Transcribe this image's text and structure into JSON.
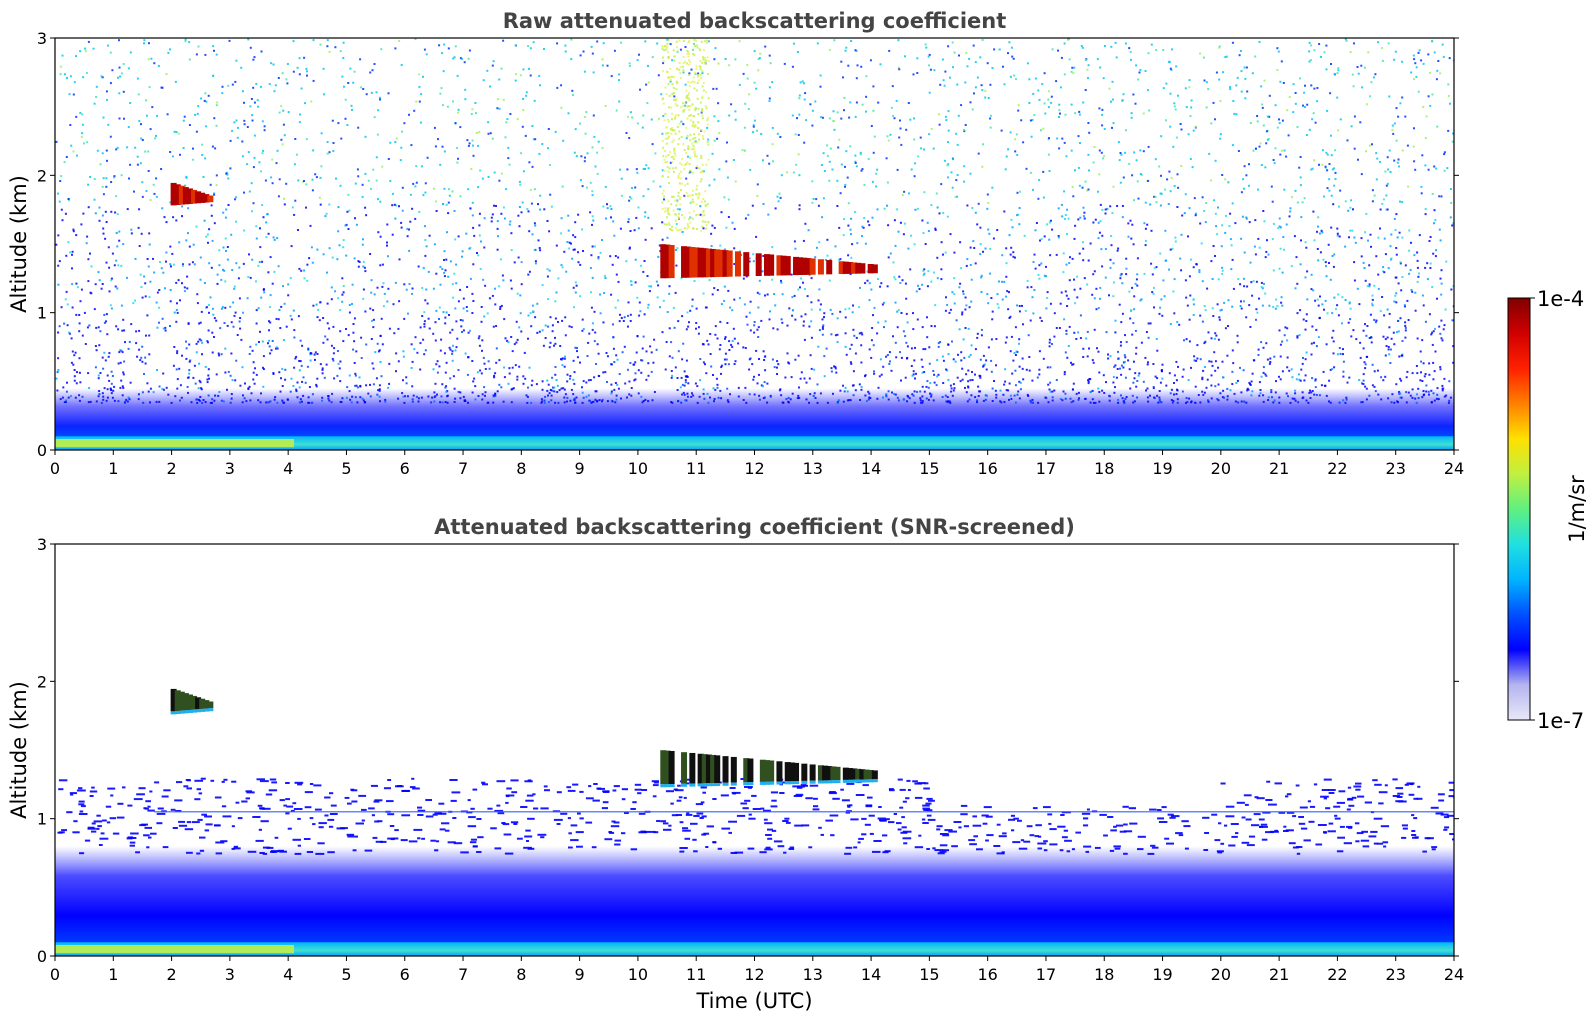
{
  "chart_data": [
    {
      "type": "heatmap",
      "title": "Raw attenuated backscattering coefficient",
      "xlabel": "",
      "ylabel": "Altitude (km)",
      "xlim": [
        0,
        24
      ],
      "ylim": [
        0,
        3
      ],
      "xticks": [
        "0",
        "1",
        "2",
        "3",
        "4",
        "5",
        "6",
        "7",
        "8",
        "9",
        "10",
        "11",
        "12",
        "13",
        "14",
        "15",
        "16",
        "17",
        "18",
        "19",
        "20",
        "21",
        "22",
        "23",
        "24"
      ],
      "yticks": [
        "0",
        "1",
        "2",
        "3"
      ],
      "features": [
        {
          "label": "surface aerosol layer",
          "x": [
            0,
            24
          ],
          "y": [
            0.0,
            0.1
          ],
          "level": "high"
        },
        {
          "label": "boundary layer",
          "x": [
            0,
            24
          ],
          "y": [
            0.1,
            0.45
          ],
          "level": "medium"
        },
        {
          "label": "cloud",
          "x": [
            2.0,
            2.7
          ],
          "y": [
            1.78,
            1.95
          ],
          "level": "saturated"
        },
        {
          "label": "cloud",
          "x": [
            10.4,
            14.1
          ],
          "y": [
            1.25,
            1.5
          ],
          "level": "saturated"
        }
      ]
    },
    {
      "type": "heatmap",
      "title": "Attenuated backscattering coefficient (SNR-screened)",
      "xlabel": "Time (UTC)",
      "ylabel": "Altitude (km)",
      "xlim": [
        0,
        24
      ],
      "ylim": [
        0,
        3
      ],
      "xticks": [
        "0",
        "1",
        "2",
        "3",
        "4",
        "5",
        "6",
        "7",
        "8",
        "9",
        "10",
        "11",
        "12",
        "13",
        "14",
        "15",
        "16",
        "17",
        "18",
        "19",
        "20",
        "21",
        "22",
        "23",
        "24"
      ],
      "yticks": [
        "0",
        "1",
        "2",
        "3"
      ],
      "features": [
        {
          "label": "surface aerosol layer",
          "x": [
            0,
            24
          ],
          "y": [
            0.0,
            0.1
          ],
          "level": "high"
        },
        {
          "label": "boundary layer",
          "x": [
            0,
            24
          ],
          "y": [
            0.1,
            0.8
          ],
          "level": "medium"
        },
        {
          "label": "cloud",
          "x": [
            2.0,
            2.7
          ],
          "y": [
            1.78,
            1.95
          ],
          "level": "saturated"
        },
        {
          "label": "cloud",
          "x": [
            10.4,
            14.1
          ],
          "y": [
            1.25,
            1.5
          ],
          "level": "saturated"
        }
      ]
    }
  ],
  "colorbar": {
    "label": "1/m/sr",
    "max_label": "1e-4",
    "min_label": "1e-7",
    "scale": "log",
    "colormap": [
      "#e8e8f8",
      "#b4b4f0",
      "#0000ff",
      "#0050ff",
      "#00b4ff",
      "#20e0e0",
      "#60f080",
      "#c0f040",
      "#ffe000",
      "#ff8000",
      "#ff2000",
      "#d00000",
      "#800000"
    ]
  }
}
